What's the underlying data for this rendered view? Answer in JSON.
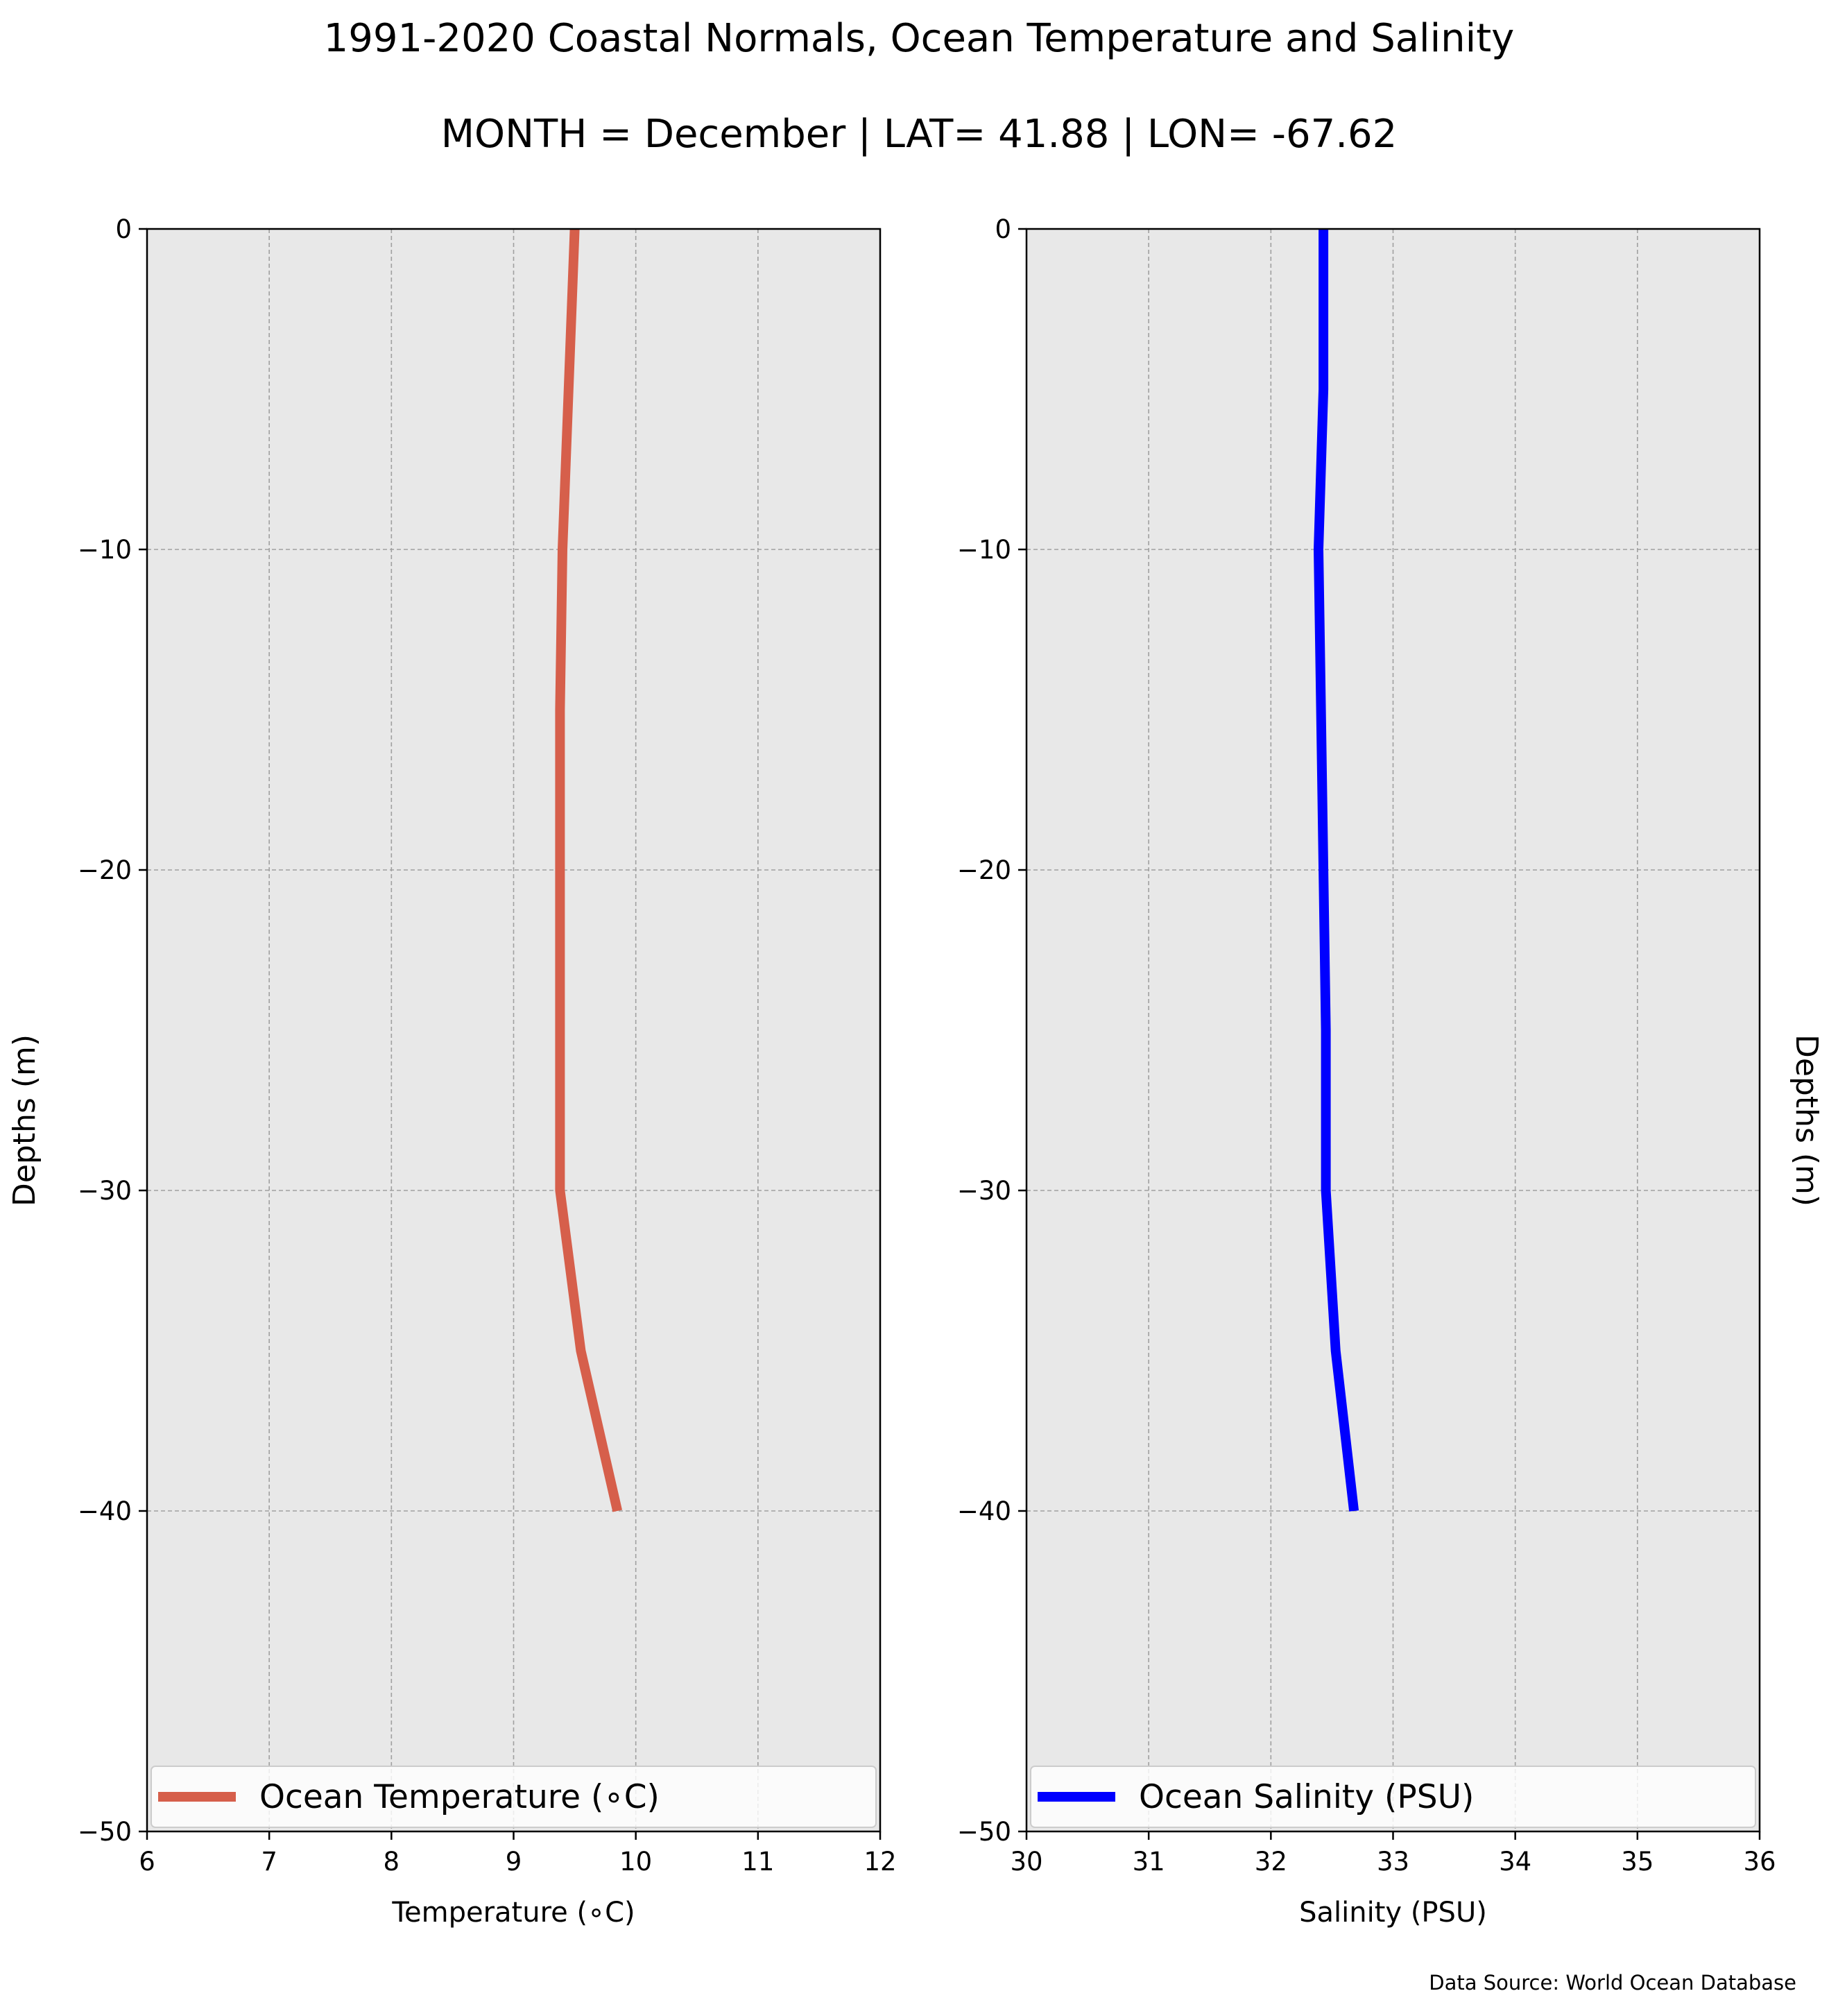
{
  "figure": {
    "title": "1991-2020 Coastal Normals, Ocean Temperature and Salinity",
    "subtitle": "MONTH = December | LAT= 41.88 | LON= -67.62",
    "source": "Data Source: World Ocean Database"
  },
  "chart_data": [
    {
      "type": "line",
      "panel": "left",
      "xlabel": "Temperature (∘C)",
      "ylabel": "Depths (m)",
      "xlim": [
        6,
        12
      ],
      "ylim": [
        -50,
        0
      ],
      "xticks": [
        6,
        7,
        8,
        9,
        10,
        11,
        12
      ],
      "yticks": [
        0,
        -10,
        -20,
        -30,
        -40,
        -50
      ],
      "grid": true,
      "legend_position": "bottom",
      "background_color": "#e8e8e8",
      "series": [
        {
          "name": "Ocean Temperature (∘C)",
          "color": "#d65f4b",
          "x": [
            9.5,
            9.45,
            9.4,
            9.38,
            9.38,
            9.38,
            9.38,
            9.55,
            9.85
          ],
          "y": [
            0,
            -5,
            -10,
            -15,
            -20,
            -25,
            -30,
            -35,
            -40
          ]
        }
      ]
    },
    {
      "type": "line",
      "panel": "right",
      "xlabel": "Salinity (PSU)",
      "ylabel": "Depths (m)",
      "xlim": [
        30,
        36
      ],
      "ylim": [
        -50,
        0
      ],
      "xticks": [
        30,
        31,
        32,
        33,
        34,
        35,
        36
      ],
      "yticks": [
        0,
        -10,
        -20,
        -30,
        -40,
        -50
      ],
      "grid": true,
      "legend_position": "bottom",
      "background_color": "#e8e8e8",
      "series": [
        {
          "name": "Ocean Salinity (PSU)",
          "color": "#0000ff",
          "x": [
            32.43,
            32.43,
            32.39,
            32.41,
            32.43,
            32.45,
            32.45,
            32.53,
            32.68
          ],
          "y": [
            0,
            -5,
            -10,
            -15,
            -20,
            -25,
            -30,
            -35,
            -40
          ]
        }
      ]
    }
  ]
}
